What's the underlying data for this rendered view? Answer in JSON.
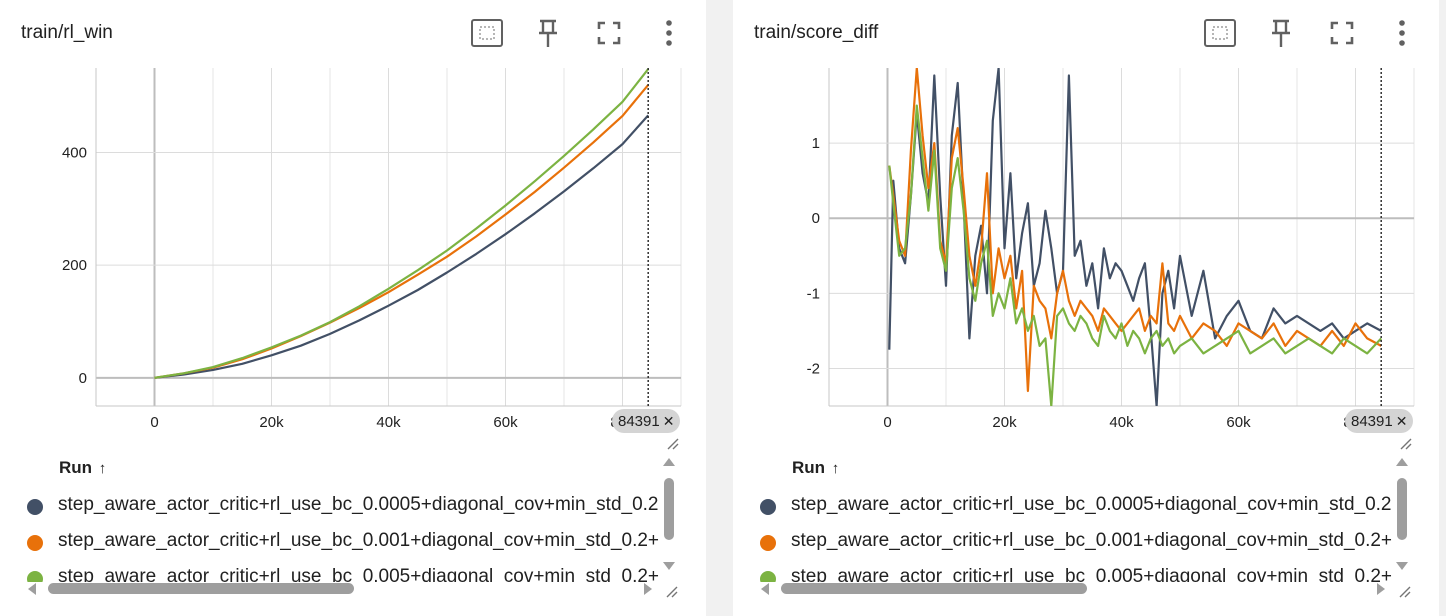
{
  "ui": {
    "sort_arrow": "↑",
    "close": "✕"
  },
  "cards": [
    {
      "title": "train/rl_win",
      "legend_header": "Run",
      "step_label": "84391",
      "runs": [
        {
          "label": "step_aware_actor_critic+rl_use_bc_0.0005+diagonal_cov+min_std_0.2",
          "color": "#425066"
        },
        {
          "label": "step_aware_actor_critic+rl_use_bc_0.001+diagonal_cov+min_std_0.2+",
          "color": "#e8710a"
        },
        {
          "label": "step_aware_actor_critic+rl_use_bc_0.005+diagonal_cov+min_std_0.2+",
          "color": "#7cb342"
        }
      ],
      "tools": [
        "fit-domain-icon",
        "pin-icon",
        "fullscreen-icon",
        "more-vert-icon"
      ]
    },
    {
      "title": "train/score_diff",
      "legend_header": "Run",
      "step_label": "84391",
      "runs": [
        {
          "label": "step_aware_actor_critic+rl_use_bc_0.0005+diagonal_cov+min_std_0.2",
          "color": "#425066"
        },
        {
          "label": "step_aware_actor_critic+rl_use_bc_0.001+diagonal_cov+min_std_0.2+",
          "color": "#e8710a"
        },
        {
          "label": "step_aware_actor_critic+rl_use_bc_0.005+diagonal_cov+min_std_0.2+",
          "color": "#7cb342"
        }
      ],
      "tools": [
        "fit-domain-icon",
        "pin-icon",
        "fullscreen-icon",
        "more-vert-icon"
      ]
    }
  ],
  "chart_data": [
    {
      "type": "line",
      "title": "train/rl_win",
      "xlabel": "",
      "ylabel": "",
      "xlim": [
        -10000,
        90000
      ],
      "ylim": [
        -50,
        550
      ],
      "xticks": [
        0,
        20000,
        40000,
        60000,
        80000
      ],
      "xtick_labels": [
        "0",
        "20k",
        "40k",
        "60k",
        "80k"
      ],
      "yticks": [
        0,
        200,
        400
      ],
      "ytick_labels": [
        "0",
        "200",
        "400"
      ],
      "cursor_step": 84391,
      "grid": true,
      "series": [
        {
          "name": "step_aware_actor_critic+rl_use_bc_0.0005+diagonal_cov+min_std_0.2",
          "color": "#425066",
          "x": [
            0,
            5000,
            10000,
            15000,
            20000,
            25000,
            30000,
            35000,
            40000,
            45000,
            50000,
            55000,
            60000,
            65000,
            70000,
            75000,
            80000,
            84391
          ],
          "y": [
            0,
            6,
            14,
            25,
            40,
            57,
            78,
            102,
            128,
            156,
            187,
            220,
            255,
            292,
            331,
            372,
            415,
            466
          ]
        },
        {
          "name": "step_aware_actor_critic+rl_use_bc_0.001+diagonal_cov+min_std_0.2+",
          "color": "#e8710a",
          "x": [
            0,
            5000,
            10000,
            15000,
            20000,
            25000,
            30000,
            35000,
            40000,
            45000,
            50000,
            55000,
            60000,
            65000,
            70000,
            75000,
            80000,
            84391
          ],
          "y": [
            0,
            8,
            18,
            33,
            52,
            74,
            98,
            124,
            152,
            183,
            215,
            251,
            290,
            330,
            373,
            418,
            465,
            520
          ]
        },
        {
          "name": "step_aware_actor_critic+rl_use_bc_0.005+diagonal_cov+min_std_0.2+",
          "color": "#7cb342",
          "x": [
            0,
            5000,
            10000,
            15000,
            20000,
            25000,
            30000,
            35000,
            40000,
            45000,
            50000,
            55000,
            60000,
            65000,
            70000,
            75000,
            80000,
            84391
          ],
          "y": [
            0,
            8,
            19,
            35,
            54,
            75,
            99,
            127,
            158,
            191,
            226,
            265,
            306,
            349,
            394,
            441,
            490,
            548
          ]
        }
      ]
    },
    {
      "type": "line",
      "title": "train/score_diff",
      "xlabel": "",
      "ylabel": "",
      "xlim": [
        -10000,
        90000
      ],
      "ylim": [
        -2.5,
        2
      ],
      "xticks": [
        0,
        20000,
        40000,
        60000,
        80000
      ],
      "xtick_labels": [
        "0",
        "20k",
        "40k",
        "60k",
        "80k"
      ],
      "yticks": [
        -2,
        -1,
        0,
        1
      ],
      "ytick_labels": [
        "-2",
        "-1",
        "0",
        "1"
      ],
      "cursor_step": 84391,
      "grid": true,
      "series": [
        {
          "name": "step_aware_actor_critic+rl_use_bc_0.0005+diagonal_cov+min_std_0.2",
          "color": "#425066",
          "x": [
            300,
            1000,
            2000,
            3000,
            4000,
            5000,
            6000,
            7000,
            8000,
            9000,
            10000,
            11000,
            12000,
            13000,
            14000,
            15000,
            16000,
            17000,
            18000,
            19000,
            20000,
            21000,
            22000,
            23000,
            24000,
            25000,
            26000,
            27000,
            28000,
            29000,
            30000,
            31000,
            32000,
            33000,
            34000,
            35000,
            36000,
            37000,
            38000,
            39000,
            40000,
            41000,
            42000,
            43000,
            44000,
            45000,
            46000,
            47000,
            48000,
            49000,
            50000,
            52000,
            54000,
            56000,
            58000,
            60000,
            62000,
            64000,
            66000,
            68000,
            70000,
            72000,
            74000,
            76000,
            78000,
            80000,
            82000,
            84391
          ],
          "y": [
            -1.75,
            0.5,
            -0.4,
            -0.6,
            0.3,
            1.4,
            0.6,
            0.2,
            1.9,
            0.3,
            -0.9,
            1.1,
            1.8,
            0.2,
            -1.6,
            -0.5,
            -0.1,
            -1.0,
            1.3,
            2.0,
            -0.4,
            0.6,
            -0.8,
            -0.2,
            0.2,
            -0.9,
            -0.6,
            0.1,
            -0.4,
            -1.0,
            -0.7,
            1.9,
            -0.5,
            -0.3,
            -0.9,
            -0.6,
            -1.2,
            -0.4,
            -0.8,
            -0.6,
            -0.7,
            -0.9,
            -1.1,
            -0.8,
            -0.6,
            -1.5,
            -2.5,
            -1.0,
            -0.7,
            -1.2,
            -0.5,
            -1.3,
            -0.7,
            -1.6,
            -1.3,
            -1.1,
            -1.5,
            -1.6,
            -1.2,
            -1.4,
            -1.3,
            -1.4,
            -1.5,
            -1.4,
            -1.6,
            -1.5,
            -1.4,
            -1.5
          ]
        },
        {
          "name": "step_aware_actor_critic+rl_use_bc_0.001+diagonal_cov+min_std_0.2+",
          "color": "#e8710a",
          "x": [
            300,
            1000,
            2000,
            3000,
            4000,
            5000,
            6000,
            7000,
            8000,
            9000,
            10000,
            11000,
            12000,
            13000,
            14000,
            15000,
            16000,
            17000,
            18000,
            19000,
            20000,
            21000,
            22000,
            23000,
            24000,
            25000,
            26000,
            27000,
            28000,
            29000,
            30000,
            31000,
            32000,
            33000,
            34000,
            35000,
            36000,
            37000,
            38000,
            39000,
            40000,
            41000,
            42000,
            43000,
            44000,
            45000,
            46000,
            47000,
            48000,
            49000,
            50000,
            52000,
            54000,
            56000,
            58000,
            60000,
            62000,
            64000,
            66000,
            68000,
            70000,
            72000,
            74000,
            76000,
            78000,
            80000,
            82000,
            84391
          ],
          "y": [
            0.7,
            0.3,
            -0.3,
            -0.5,
            0.9,
            2.0,
            1.1,
            0.4,
            1.0,
            -0.3,
            -0.6,
            0.8,
            1.2,
            0.4,
            -0.5,
            -0.9,
            -0.4,
            0.6,
            -1.0,
            -0.4,
            -0.8,
            -0.5,
            -1.2,
            -0.7,
            -2.3,
            -0.9,
            -1.1,
            -1.2,
            -1.6,
            -1.0,
            -0.7,
            -1.1,
            -1.3,
            -1.1,
            -1.2,
            -1.3,
            -1.5,
            -1.2,
            -1.3,
            -1.4,
            -1.5,
            -1.4,
            -1.3,
            -1.2,
            -1.5,
            -1.3,
            -1.4,
            -0.6,
            -1.4,
            -1.5,
            -1.3,
            -1.6,
            -1.4,
            -1.5,
            -1.7,
            -1.4,
            -1.5,
            -1.6,
            -1.4,
            -1.7,
            -1.5,
            -1.6,
            -1.7,
            -1.5,
            -1.7,
            -1.4,
            -1.6,
            -1.7
          ]
        },
        {
          "name": "step_aware_actor_critic+rl_use_bc_0.005+diagonal_cov+min_std_0.2+",
          "color": "#7cb342",
          "x": [
            300,
            1000,
            2000,
            3000,
            4000,
            5000,
            6000,
            7000,
            8000,
            9000,
            10000,
            11000,
            12000,
            13000,
            14000,
            15000,
            16000,
            17000,
            18000,
            19000,
            20000,
            21000,
            22000,
            23000,
            24000,
            25000,
            26000,
            27000,
            28000,
            29000,
            30000,
            31000,
            32000,
            33000,
            34000,
            35000,
            36000,
            37000,
            38000,
            39000,
            40000,
            41000,
            42000,
            43000,
            44000,
            45000,
            46000,
            47000,
            48000,
            49000,
            50000,
            52000,
            54000,
            56000,
            58000,
            60000,
            62000,
            64000,
            66000,
            68000,
            70000,
            72000,
            74000,
            76000,
            78000,
            80000,
            82000,
            84391
          ],
          "y": [
            0.7,
            0.2,
            -0.5,
            -0.4,
            0.3,
            1.5,
            0.8,
            0.1,
            0.9,
            -0.4,
            -0.7,
            0.4,
            0.8,
            0.1,
            -0.8,
            -1.1,
            -0.6,
            -0.3,
            -1.3,
            -1.0,
            -1.2,
            -0.8,
            -1.4,
            -1.2,
            -1.5,
            -1.3,
            -1.7,
            -1.6,
            -2.5,
            -1.3,
            -1.2,
            -1.4,
            -1.5,
            -1.3,
            -1.4,
            -1.6,
            -1.7,
            -1.3,
            -1.5,
            -1.6,
            -1.4,
            -1.7,
            -1.5,
            -1.6,
            -1.8,
            -1.6,
            -1.5,
            -1.7,
            -1.6,
            -1.8,
            -1.7,
            -1.6,
            -1.8,
            -1.7,
            -1.6,
            -1.5,
            -1.8,
            -1.7,
            -1.6,
            -1.8,
            -1.7,
            -1.6,
            -1.7,
            -1.8,
            -1.6,
            -1.7,
            -1.8,
            -1.6
          ]
        }
      ]
    }
  ]
}
